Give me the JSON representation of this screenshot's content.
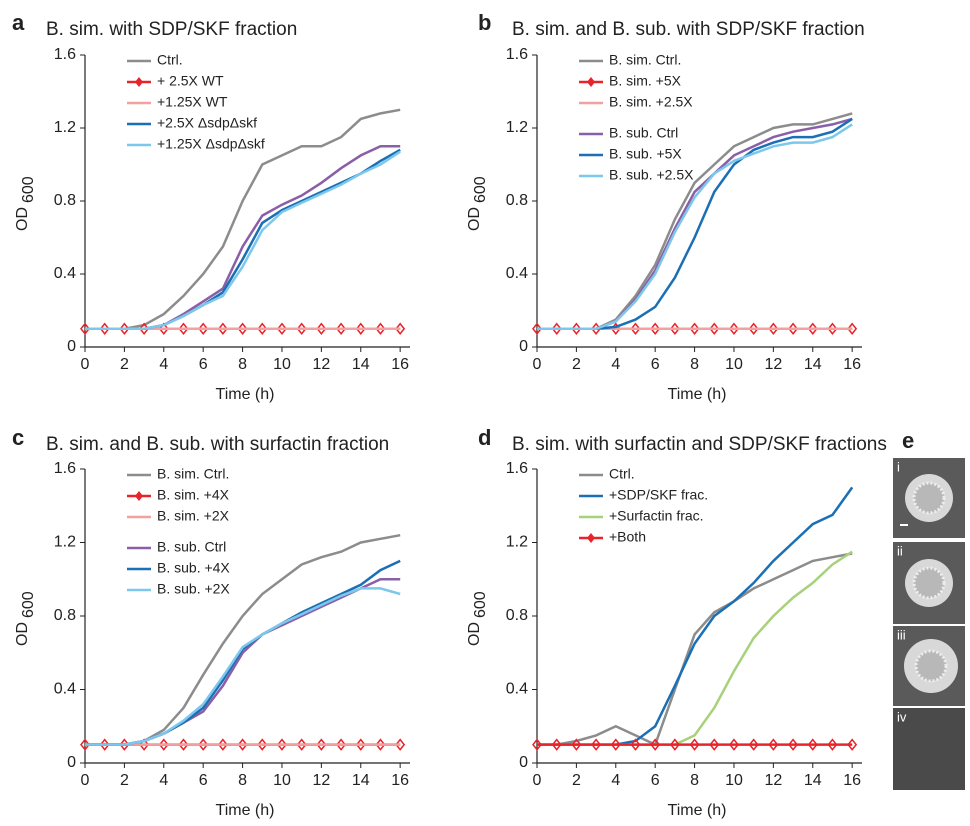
{
  "chart_data": [
    {
      "type": "line",
      "panel": "a",
      "title": "B. sim. with SDP/SKF fraction",
      "xlabel": "Time (h)",
      "ylabel": "OD",
      "ylabel_sub": "600",
      "x": [
        0,
        1,
        2,
        3,
        4,
        5,
        6,
        7,
        8,
        9,
        10,
        11,
        12,
        13,
        14,
        15,
        16
      ],
      "xlim": [
        0,
        16.5
      ],
      "xticks": [
        0,
        2,
        4,
        6,
        8,
        10,
        12,
        14,
        16
      ],
      "ylim": [
        0,
        1.6
      ],
      "yticks": [
        0,
        0.4,
        0.8,
        1.2,
        1.6
      ],
      "series": [
        {
          "name": null,
          "color": "#8a5fa8",
          "values": [
            0.1,
            0.1,
            0.1,
            0.1,
            0.12,
            0.18,
            0.25,
            0.32,
            0.55,
            0.72,
            0.78,
            0.83,
            0.9,
            0.98,
            1.05,
            1.1,
            1.1
          ]
        },
        {
          "name": "Ctrl.",
          "color": "#8c8c8c",
          "values": [
            0.1,
            0.1,
            0.1,
            0.12,
            0.18,
            0.28,
            0.4,
            0.55,
            0.8,
            1.0,
            1.05,
            1.1,
            1.1,
            1.15,
            1.25,
            1.28,
            1.3
          ]
        },
        {
          "name": "+ 2.5X WT",
          "color": "#e8242a",
          "marker": "diamond",
          "values": [
            0.1,
            0.1,
            0.1,
            0.1,
            0.1,
            0.1,
            0.1,
            0.1,
            0.1,
            0.1,
            0.1,
            0.1,
            0.1,
            0.1,
            0.1,
            0.1,
            0.1
          ]
        },
        {
          "name": "+1.25X WT",
          "color": "#f2a0a0",
          "values": [
            0.1,
            0.1,
            0.1,
            0.1,
            0.1,
            0.1,
            0.1,
            0.1,
            0.1,
            0.1,
            0.1,
            0.1,
            0.1,
            0.1,
            0.1,
            0.1,
            0.1
          ]
        },
        {
          "name": "+2.5X ΔsdpΔskf",
          "color": "#1a6fb5",
          "values": [
            0.1,
            0.1,
            0.1,
            0.1,
            0.12,
            0.17,
            0.23,
            0.3,
            0.48,
            0.68,
            0.75,
            0.8,
            0.85,
            0.9,
            0.95,
            1.02,
            1.08
          ]
        },
        {
          "name": "+1.25X ΔsdpΔskf",
          "color": "#7cc8ec",
          "values": [
            0.1,
            0.1,
            0.1,
            0.1,
            0.12,
            0.17,
            0.23,
            0.28,
            0.44,
            0.64,
            0.74,
            0.79,
            0.84,
            0.89,
            0.95,
            1.0,
            1.07
          ]
        }
      ]
    },
    {
      "type": "line",
      "panel": "b",
      "title": "B. sim. and B. sub. with SDP/SKF fraction",
      "xlabel": "Time (h)",
      "ylabel": "OD",
      "ylabel_sub": "600",
      "x": [
        0,
        1,
        2,
        3,
        4,
        5,
        6,
        7,
        8,
        9,
        10,
        11,
        12,
        13,
        14,
        15,
        16
      ],
      "xlim": [
        0,
        16.5
      ],
      "xticks": [
        0,
        2,
        4,
        6,
        8,
        10,
        12,
        14,
        16
      ],
      "ylim": [
        0,
        1.6
      ],
      "yticks": [
        0,
        0.4,
        0.8,
        1.2,
        1.6
      ],
      "series": [
        {
          "name": "B. sim. Ctrl.",
          "color": "#8c8c8c",
          "values": [
            0.1,
            0.1,
            0.1,
            0.1,
            0.15,
            0.28,
            0.45,
            0.7,
            0.9,
            1.0,
            1.1,
            1.15,
            1.2,
            1.22,
            1.22,
            1.25,
            1.28
          ]
        },
        {
          "name": "B. sim. +5X",
          "color": "#e8242a",
          "marker": "diamond",
          "values": [
            0.1,
            0.1,
            0.1,
            0.1,
            0.1,
            0.1,
            0.1,
            0.1,
            0.1,
            0.1,
            0.1,
            0.1,
            0.1,
            0.1,
            0.1,
            0.1,
            0.1
          ]
        },
        {
          "name": "B. sim. +2.5X",
          "color": "#f2a0a0",
          "values": [
            0.1,
            0.1,
            0.1,
            0.1,
            0.1,
            0.1,
            0.1,
            0.1,
            0.1,
            0.1,
            0.1,
            0.1,
            0.1,
            0.1,
            0.1,
            0.1,
            0.1
          ]
        },
        {
          "name": "B. sub. Ctrl",
          "color": "#8a5fa8",
          "values": [
            0.1,
            0.1,
            0.1,
            0.1,
            0.14,
            0.26,
            0.42,
            0.65,
            0.85,
            0.95,
            1.05,
            1.1,
            1.15,
            1.18,
            1.2,
            1.22,
            1.25
          ]
        },
        {
          "name": "B. sub. +5X",
          "color": "#1a6fb5",
          "values": [
            0.1,
            0.1,
            0.1,
            0.1,
            0.11,
            0.15,
            0.22,
            0.38,
            0.6,
            0.85,
            1.0,
            1.08,
            1.12,
            1.15,
            1.15,
            1.18,
            1.25
          ]
        },
        {
          "name": "B. sub. +2.5X",
          "color": "#7cc8ec",
          "values": [
            0.1,
            0.1,
            0.1,
            0.1,
            0.14,
            0.25,
            0.4,
            0.63,
            0.82,
            0.95,
            1.02,
            1.06,
            1.1,
            1.12,
            1.12,
            1.15,
            1.22
          ]
        }
      ]
    },
    {
      "type": "line",
      "panel": "c",
      "title": "B. sim. and B. sub. with surfactin fraction",
      "xlabel": "Time (h)",
      "ylabel": "OD",
      "ylabel_sub": "600",
      "x": [
        0,
        1,
        2,
        3,
        4,
        5,
        6,
        7,
        8,
        9,
        10,
        11,
        12,
        13,
        14,
        15,
        16
      ],
      "xlim": [
        0,
        16.5
      ],
      "xticks": [
        0,
        2,
        4,
        6,
        8,
        10,
        12,
        14,
        16
      ],
      "ylim": [
        0,
        1.6
      ],
      "yticks": [
        0,
        0.4,
        0.8,
        1.2,
        1.6
      ],
      "series": [
        {
          "name": "B. sim. Ctrl.",
          "color": "#8c8c8c",
          "values": [
            0.1,
            0.1,
            0.1,
            0.12,
            0.18,
            0.3,
            0.48,
            0.65,
            0.8,
            0.92,
            1.0,
            1.08,
            1.12,
            1.15,
            1.2,
            1.22,
            1.24
          ]
        },
        {
          "name": "B. sim. +4X",
          "color": "#e8242a",
          "marker": "diamond",
          "values": [
            0.1,
            0.1,
            0.1,
            0.1,
            0.1,
            0.1,
            0.1,
            0.1,
            0.1,
            0.1,
            0.1,
            0.1,
            0.1,
            0.1,
            0.1,
            0.1,
            0.1
          ]
        },
        {
          "name": "B. sim. +2X",
          "color": "#f2a0a0",
          "values": [
            0.1,
            0.1,
            0.1,
            0.1,
            0.1,
            0.1,
            0.1,
            0.1,
            0.1,
            0.1,
            0.1,
            0.1,
            0.1,
            0.1,
            0.1,
            0.1,
            0.1
          ]
        },
        {
          "name": "B. sub. Ctrl",
          "color": "#8a5fa8",
          "values": [
            0.1,
            0.1,
            0.1,
            0.12,
            0.16,
            0.22,
            0.28,
            0.42,
            0.6,
            0.7,
            0.75,
            0.8,
            0.85,
            0.9,
            0.95,
            1.0,
            1.0
          ]
        },
        {
          "name": "B. sub. +4X",
          "color": "#1a6fb5",
          "values": [
            0.1,
            0.1,
            0.1,
            0.12,
            0.16,
            0.22,
            0.3,
            0.45,
            0.62,
            0.7,
            0.76,
            0.82,
            0.87,
            0.92,
            0.97,
            1.05,
            1.1
          ]
        },
        {
          "name": "B. sub. +2X",
          "color": "#7cc8ec",
          "values": [
            0.1,
            0.1,
            0.1,
            0.12,
            0.16,
            0.23,
            0.32,
            0.47,
            0.63,
            0.7,
            0.76,
            0.81,
            0.86,
            0.91,
            0.95,
            0.95,
            0.92
          ]
        }
      ]
    },
    {
      "type": "line",
      "panel": "d",
      "title": "B. sim. with surfactin and SDP/SKF fractions",
      "xlabel": "Time (h)",
      "ylabel": "OD",
      "ylabel_sub": "600",
      "x": [
        0,
        1,
        2,
        3,
        4,
        5,
        6,
        7,
        8,
        9,
        10,
        11,
        12,
        13,
        14,
        15,
        16
      ],
      "xlim": [
        0,
        16.5
      ],
      "xticks": [
        0,
        2,
        4,
        6,
        8,
        10,
        12,
        14,
        16
      ],
      "ylim": [
        0,
        1.6
      ],
      "yticks": [
        0,
        0.4,
        0.8,
        1.2,
        1.6
      ],
      "series": [
        {
          "name": "Ctrl.",
          "color": "#8c8c8c",
          "values": [
            0.1,
            0.1,
            0.12,
            0.15,
            0.2,
            0.15,
            0.1,
            0.4,
            0.7,
            0.82,
            0.88,
            0.95,
            1.0,
            1.05,
            1.1,
            1.12,
            1.14
          ]
        },
        {
          "name": "+SDP/SKF frac.",
          "color": "#1a6fb5",
          "values": [
            0.1,
            0.1,
            0.1,
            0.1,
            0.1,
            0.12,
            0.2,
            0.42,
            0.65,
            0.8,
            0.88,
            0.98,
            1.1,
            1.2,
            1.3,
            1.35,
            1.5
          ]
        },
        {
          "name": "+Surfactin frac.",
          "color": "#a7d17a",
          "values": [
            0.1,
            0.1,
            0.1,
            0.1,
            0.1,
            0.1,
            0.1,
            0.1,
            0.15,
            0.3,
            0.5,
            0.68,
            0.8,
            0.9,
            0.98,
            1.08,
            1.15
          ]
        },
        {
          "name": "+Both",
          "color": "#e8242a",
          "marker": "diamond",
          "values": [
            0.1,
            0.1,
            0.1,
            0.1,
            0.1,
            0.1,
            0.1,
            0.1,
            0.1,
            0.1,
            0.1,
            0.1,
            0.1,
            0.1,
            0.1,
            0.1,
            0.1
          ]
        }
      ]
    }
  ],
  "panel_e": {
    "panel": "e",
    "images": [
      "i",
      "ii",
      "iii",
      "iv"
    ]
  }
}
